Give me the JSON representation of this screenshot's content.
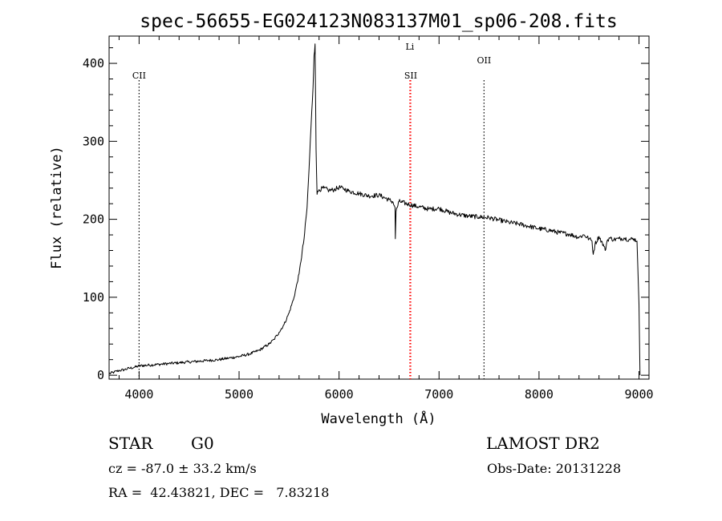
{
  "chart_data": {
    "type": "line",
    "title": "spec-56655-EG024123N083137M01_sp06-208.fits",
    "xlabel": "Wavelength (Å)",
    "ylabel": "Flux (relative)",
    "xlim": [
      3700,
      9100
    ],
    "ylim": [
      -5,
      435
    ],
    "x_ticks": [
      4000,
      5000,
      6000,
      7000,
      8000,
      9000
    ],
    "x_tick_labels": [
      "4000",
      "5000",
      "6000",
      "7000",
      "8000",
      "9000"
    ],
    "y_ticks": [
      0,
      100,
      200,
      300,
      400
    ],
    "y_tick_labels": [
      "0",
      "100",
      "200",
      "300",
      "400"
    ],
    "grid": false,
    "series": [
      {
        "x": [
          3700,
          3750,
          3800,
          3850,
          3900,
          3950,
          4000,
          4100,
          4200,
          4300,
          4400,
          4500,
          4600,
          4700,
          4800,
          4900,
          5000,
          5100,
          5200,
          5300,
          5350,
          5400,
          5450,
          5500,
          5550,
          5600,
          5650,
          5680,
          5700,
          5720,
          5740,
          5750,
          5760,
          5770,
          5780,
          5800,
          5850,
          5900,
          5950,
          6000,
          6050,
          6100,
          6200,
          6300,
          6400,
          6500,
          6540,
          6560,
          6563,
          6570,
          6600,
          6700,
          6800,
          6900,
          7000,
          7100,
          7200,
          7300,
          7400,
          7500,
          7600,
          7700,
          7800,
          7900,
          8000,
          8100,
          8200,
          8300,
          8400,
          8450,
          8500,
          8530,
          8542,
          8560,
          8600,
          8650,
          8662,
          8680,
          8700,
          8750,
          8800,
          8850,
          8900,
          8950,
          8980,
          9000,
          9010
        ],
        "values": [
          2,
          4,
          6,
          7,
          9,
          10,
          12,
          13,
          14,
          15,
          16,
          17,
          18,
          19,
          20,
          22,
          24,
          27,
          32,
          40,
          46,
          55,
          65,
          80,
          100,
          130,
          175,
          215,
          265,
          320,
          370,
          410,
          425,
          290,
          232,
          238,
          240,
          237,
          238,
          241,
          239,
          236,
          233,
          230,
          231,
          225,
          222,
          215,
          175,
          210,
          223,
          219,
          216,
          213,
          214,
          209,
          206,
          204,
          203,
          202,
          199,
          196,
          194,
          191,
          188,
          186,
          183,
          181,
          177,
          180,
          175,
          172,
          155,
          168,
          178,
          165,
          160,
          172,
          176,
          174,
          175,
          176,
          174,
          175,
          172,
          90,
          0
        ]
      }
    ],
    "annotations": [
      {
        "label": "CII",
        "x": 4000,
        "line_color": "#000000"
      },
      {
        "label": "Li",
        "x": 6708,
        "line_color": "#ff0000"
      },
      {
        "label": "SII",
        "x": 6717,
        "line_color": "#ff0000"
      },
      {
        "label": "OII",
        "x": 7450,
        "line_color": "#000000"
      }
    ]
  },
  "footer": {
    "class_label": "STAR",
    "subclass_label": "G0",
    "survey_label": "LAMOST DR2",
    "cz_text": "cz = -87.0 ± 33.2 km/s",
    "obs_date_text": "Obs-Date: 20131228",
    "coords_text": "RA =  42.43821, DEC =   7.83218"
  }
}
